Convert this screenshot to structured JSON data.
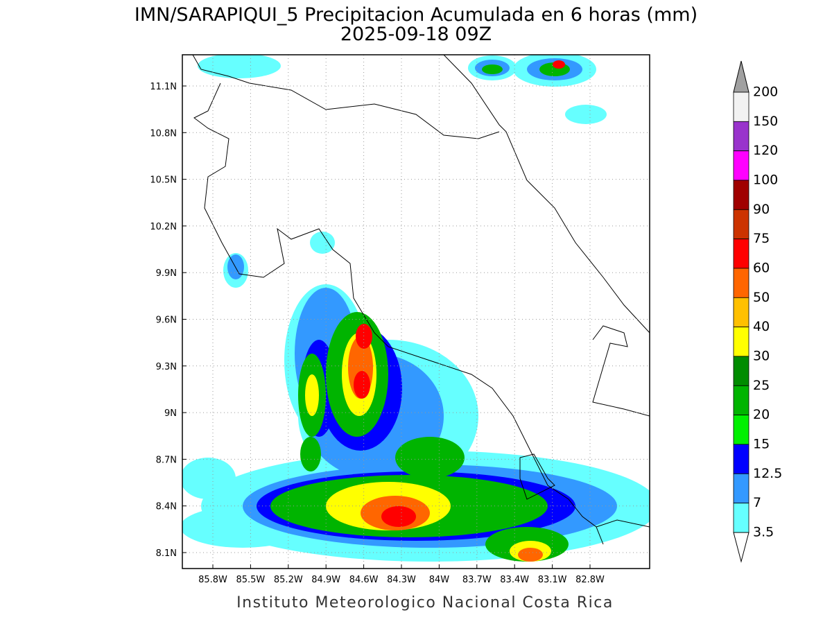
{
  "header": {
    "title": "IMN/SARAPIQUI_5 Precipitacion Acumulada en 6 horas (mm)",
    "subtitle": "2025-09-18 09Z"
  },
  "map": {
    "lat_labels": [
      "11.1N",
      "10.8N",
      "10.5N",
      "10.2N",
      "9.9N",
      "9.6N",
      "9.3N",
      "9N",
      "8.7N",
      "8.4N",
      "8.1N"
    ],
    "lon_labels": [
      "85.8W",
      "85.5W",
      "85.2W",
      "84.9W",
      "84.6W",
      "84.3W",
      "84W",
      "83.7W",
      "83.4W",
      "83.1W",
      "82.8W"
    ]
  },
  "colorbar": {
    "labels": [
      200,
      150,
      120,
      100,
      90,
      75,
      60,
      50,
      40,
      30,
      25,
      20,
      15,
      12.5,
      7,
      3.5
    ],
    "colors": [
      "#f2f2f2",
      "#9933cc",
      "#ff00ff",
      "#a00000",
      "#cc3300",
      "#ff0000",
      "#ff6600",
      "#ffc000",
      "#ffff00",
      "#008c00",
      "#00b400",
      "#00f000",
      "#0000ff",
      "#3399ff",
      "#66ffff"
    ],
    "over_color": "#a0a0a0",
    "under_color": "#ffffff"
  },
  "footer": {
    "text": "Instituto Meteorologico Nacional Costa Rica"
  }
}
